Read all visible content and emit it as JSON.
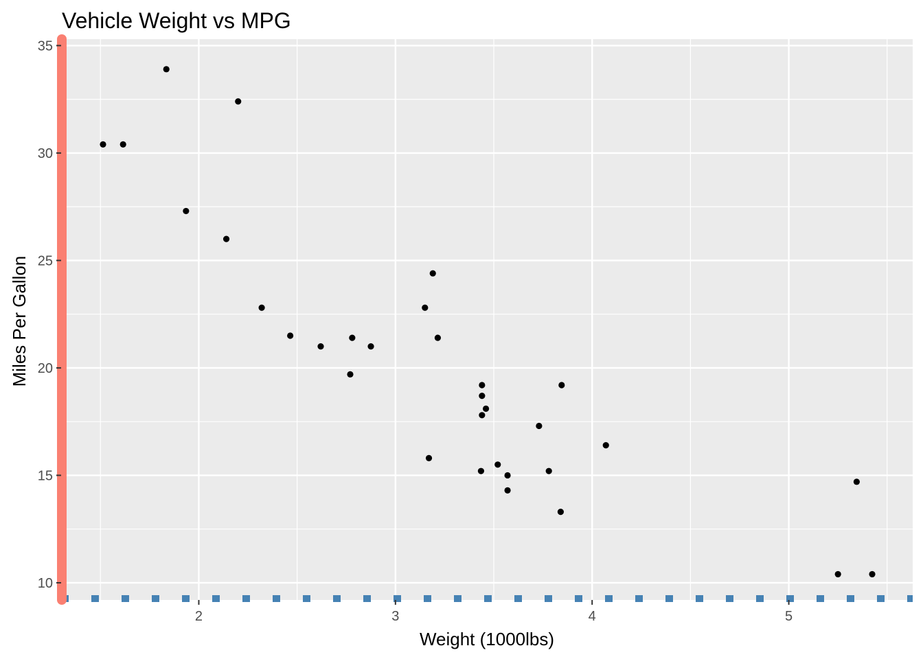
{
  "chart_data": {
    "type": "scatter",
    "title": "Vehicle Weight vs MPG",
    "xlabel": "Weight (1000lbs)",
    "ylabel": "Miles Per Gallon",
    "xlim": [
      1.3,
      5.63
    ],
    "ylim": [
      9.2,
      35.3
    ],
    "x_ticks": [
      2,
      3,
      4,
      5
    ],
    "y_ticks": [
      10,
      15,
      20,
      25,
      30,
      35
    ],
    "grid": true,
    "colors": {
      "panel_background": "#EBEBEB",
      "grid": "#FFFFFF",
      "points": "#000000",
      "y_axis_line": "#FA8072",
      "x_axis_line": "#4682B4",
      "tick_label": "#4D4D4D"
    },
    "axis_line_styles": {
      "y": "solid",
      "x": "dotted"
    },
    "points": [
      {
        "x": 2.62,
        "y": 21.0
      },
      {
        "x": 2.875,
        "y": 21.0
      },
      {
        "x": 2.32,
        "y": 22.8
      },
      {
        "x": 3.215,
        "y": 21.4
      },
      {
        "x": 3.44,
        "y": 18.7
      },
      {
        "x": 3.46,
        "y": 18.1
      },
      {
        "x": 3.57,
        "y": 14.3
      },
      {
        "x": 3.19,
        "y": 24.4
      },
      {
        "x": 3.15,
        "y": 22.8
      },
      {
        "x": 3.44,
        "y": 19.2
      },
      {
        "x": 3.44,
        "y": 17.8
      },
      {
        "x": 4.07,
        "y": 16.4
      },
      {
        "x": 3.73,
        "y": 17.3
      },
      {
        "x": 3.78,
        "y": 15.2
      },
      {
        "x": 5.25,
        "y": 10.4
      },
      {
        "x": 5.424,
        "y": 10.4
      },
      {
        "x": 5.345,
        "y": 14.7
      },
      {
        "x": 2.2,
        "y": 32.4
      },
      {
        "x": 1.615,
        "y": 30.4
      },
      {
        "x": 1.835,
        "y": 33.9
      },
      {
        "x": 2.465,
        "y": 21.5
      },
      {
        "x": 3.52,
        "y": 15.5
      },
      {
        "x": 3.435,
        "y": 15.2
      },
      {
        "x": 3.84,
        "y": 13.3
      },
      {
        "x": 3.845,
        "y": 19.2
      },
      {
        "x": 1.935,
        "y": 27.3
      },
      {
        "x": 2.14,
        "y": 26.0
      },
      {
        "x": 1.513,
        "y": 30.4
      },
      {
        "x": 3.17,
        "y": 15.8
      },
      {
        "x": 2.77,
        "y": 19.7
      },
      {
        "x": 3.57,
        "y": 15.0
      },
      {
        "x": 2.78,
        "y": 21.4
      }
    ]
  }
}
